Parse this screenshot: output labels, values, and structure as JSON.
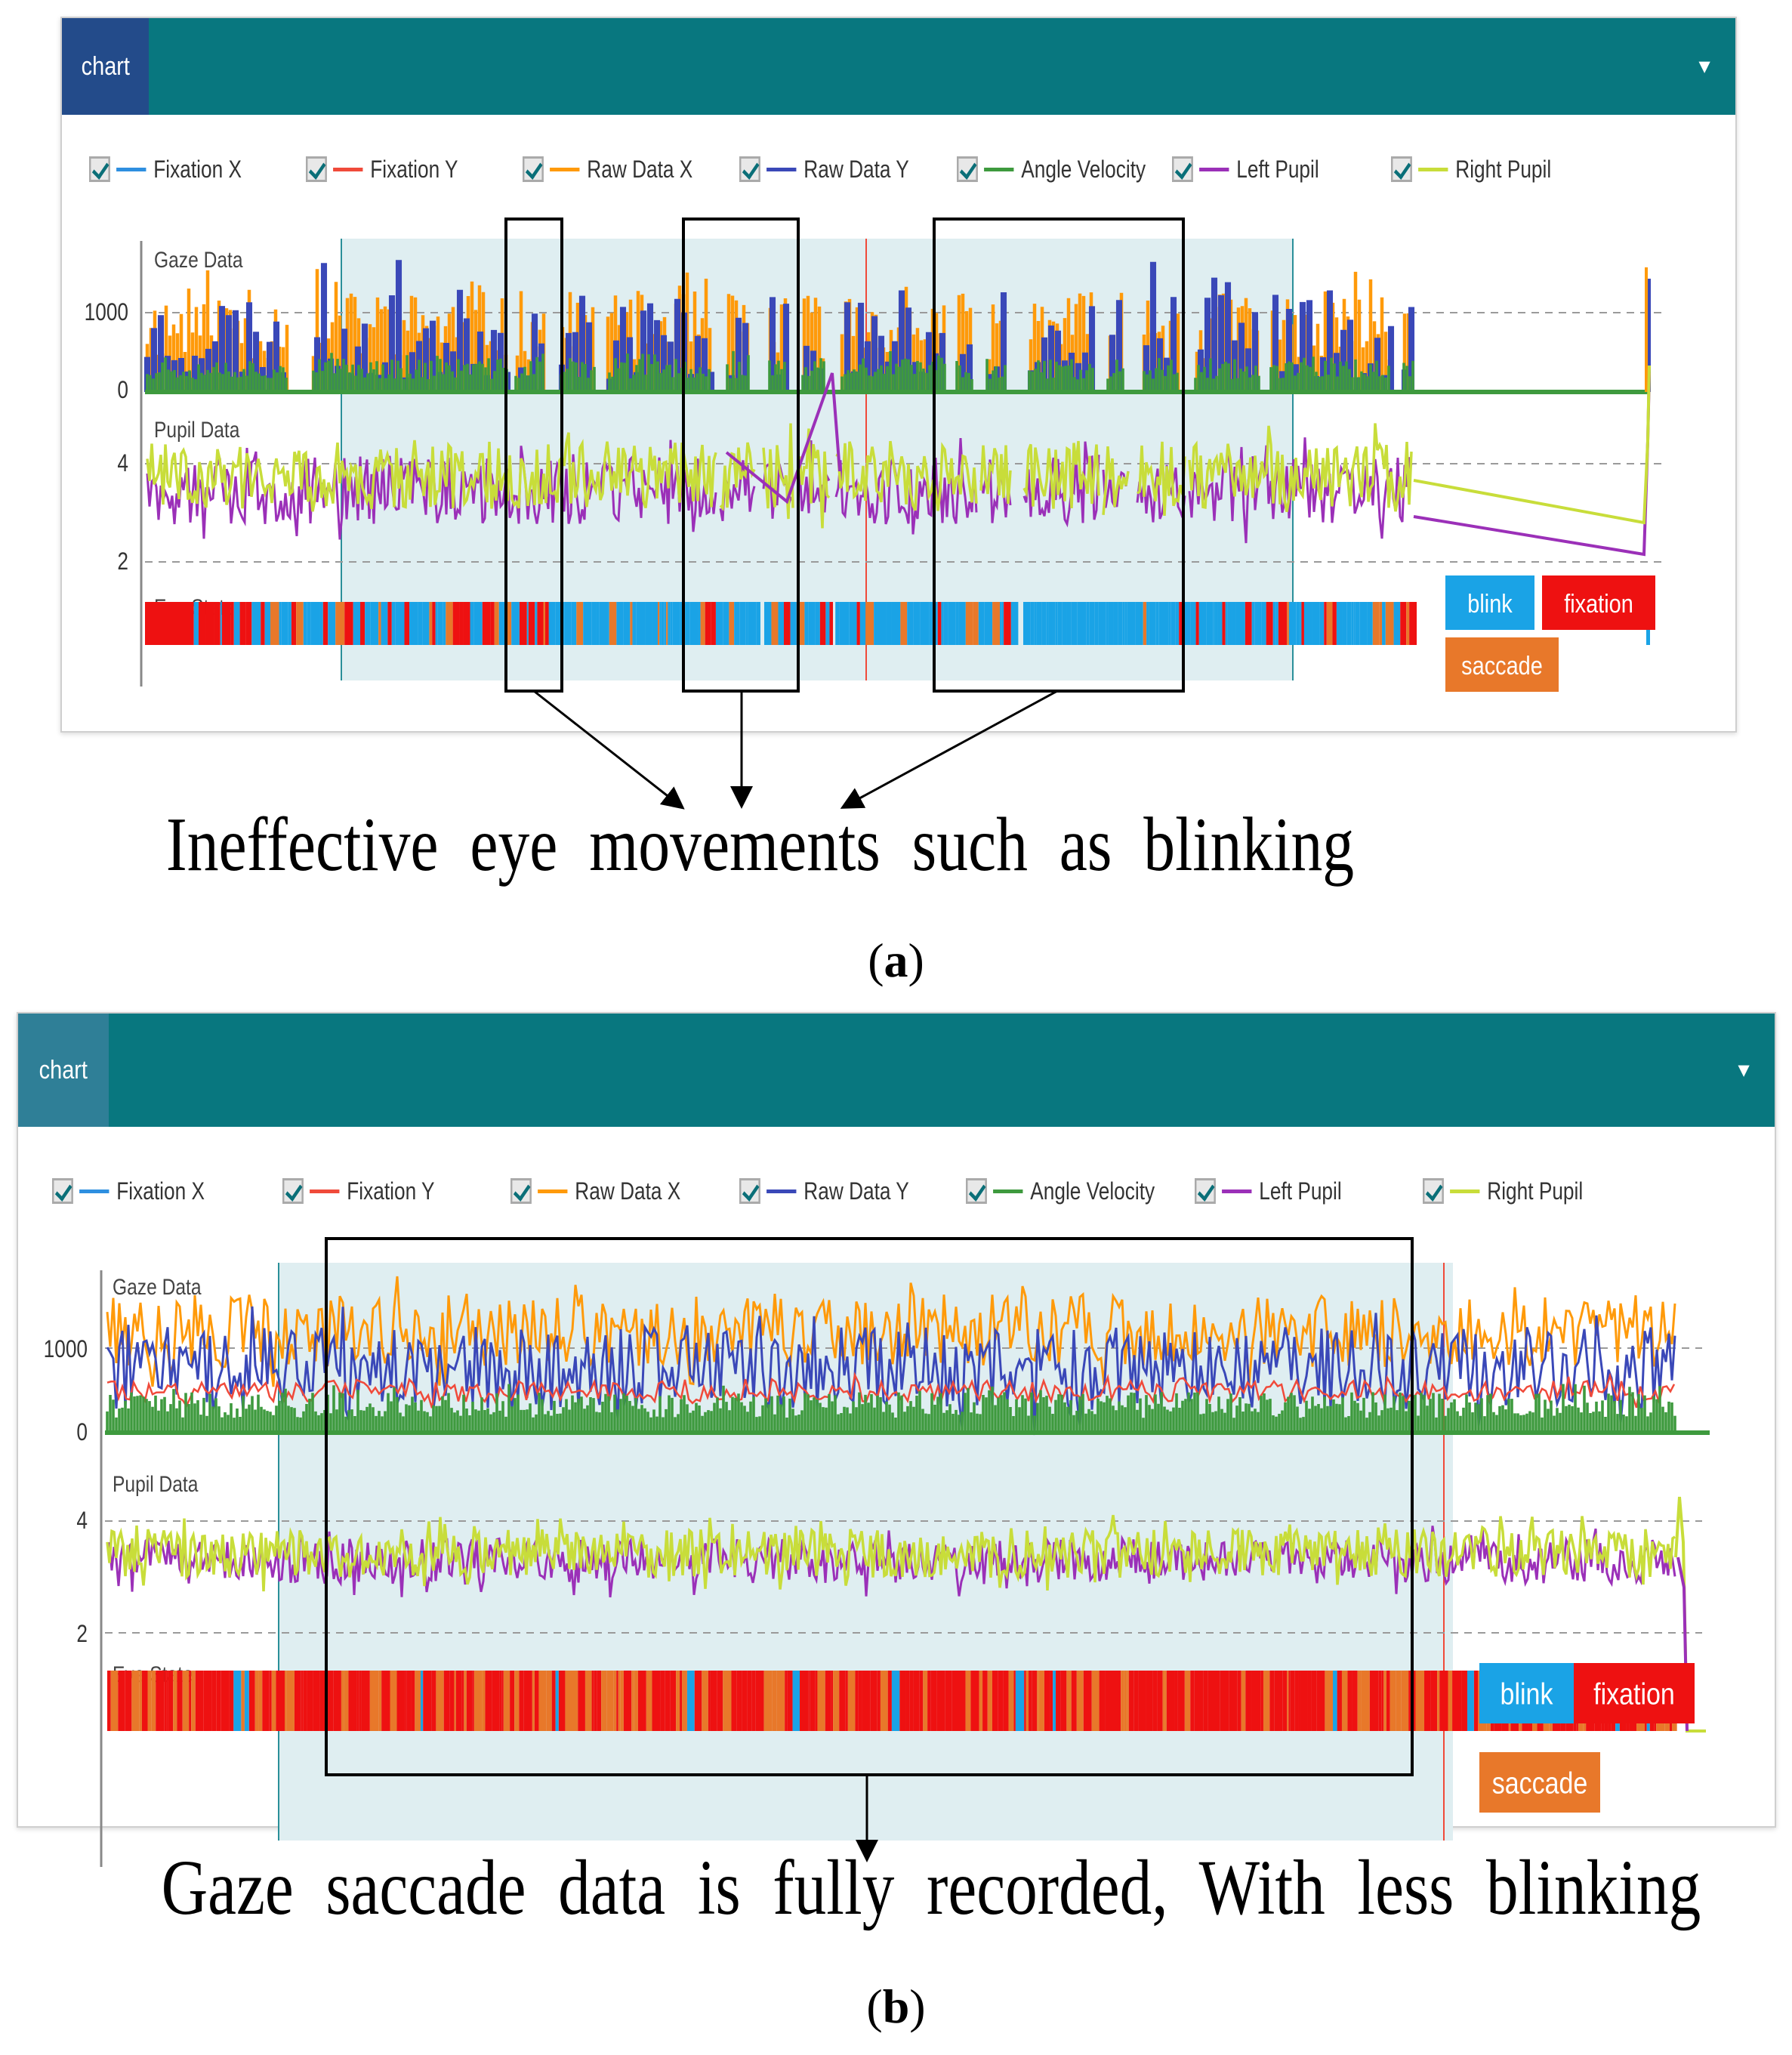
{
  "colors": {
    "fixation_x": "#2e8fe0",
    "fixation_y": "#f04a3a",
    "raw_x": "#ff9a0a",
    "raw_y": "#3a48b8",
    "angle_velocity": "#3e9a3e",
    "left_pupil": "#9b30b8",
    "right_pupil": "#c8dd3a",
    "blink": "#1aa3e6",
    "fixation": "#ee1111",
    "saccade": "#e8782a",
    "header": "#08777f",
    "selection": "#dfeef1"
  },
  "panel_a": {
    "tab_label": "chart",
    "legend": [
      "Fixation X",
      "Fixation Y",
      "Raw Data X",
      "Raw Data Y",
      "Angle Velocity",
      "Left Pupil",
      "Right Pupil"
    ],
    "gaze_label": "Gaze Data",
    "pupil_label": "Pupil Data",
    "state_label": "Eye State",
    "gaze_ticks": [
      "1000",
      "0"
    ],
    "pupil_ticks": [
      "4",
      "2"
    ],
    "state_legend": {
      "blink": "blink",
      "fixation": "fixation",
      "saccade": "saccade"
    },
    "caption": "Ineffective  eye  movements  such  as  blinking",
    "tag": "a"
  },
  "panel_b": {
    "tab_label": "chart",
    "legend": [
      "Fixation X",
      "Fixation Y",
      "Raw Data X",
      "Raw Data Y",
      "Angle Velocity",
      "Left Pupil",
      "Right Pupil"
    ],
    "gaze_label": "Gaze Data",
    "pupil_label": "Pupil Data",
    "state_label": "Eye State",
    "gaze_ticks": [
      "1000",
      "0"
    ],
    "pupil_ticks": [
      "4",
      "2"
    ],
    "state_legend": {
      "blink": "blink",
      "fixation": "fixation",
      "saccade": "saccade"
    },
    "caption": "Gaze  saccade  data  is  fully  recorded,  With  less  blinking",
    "tag": "b"
  },
  "chart_data": [
    {
      "type": "line",
      "panel": "a",
      "title": "",
      "series": [
        {
          "name": "Fixation X"
        },
        {
          "name": "Fixation Y"
        },
        {
          "name": "Raw Data X"
        },
        {
          "name": "Raw Data Y"
        },
        {
          "name": "Angle Velocity"
        },
        {
          "name": "Left Pupil"
        },
        {
          "name": "Right Pupil"
        }
      ],
      "gaze_ylim": [
        0,
        1500
      ],
      "pupil_ylim": [
        2,
        5
      ],
      "gaze_ticks": [
        0,
        1000
      ],
      "pupil_ticks": [
        2,
        4
      ],
      "pupil_typical_range": [
        2.5,
        4.5
      ],
      "right_pupil_end_value": 2.5,
      "left_pupil_end_value": 2.1,
      "eye_state_categories": [
        "blink",
        "fixation",
        "saccade"
      ],
      "eye_state_pattern": "frequent blink segments with gaps where no gaze data is recorded",
      "grid": "dashed horizontal",
      "annotation": "Ineffective eye movements such as blinking"
    },
    {
      "type": "line",
      "panel": "b",
      "title": "",
      "series": [
        {
          "name": "Fixation X"
        },
        {
          "name": "Fixation Y"
        },
        {
          "name": "Raw Data X"
        },
        {
          "name": "Raw Data Y"
        },
        {
          "name": "Angle Velocity"
        },
        {
          "name": "Left Pupil"
        },
        {
          "name": "Right Pupil"
        }
      ],
      "gaze_ylim": [
        0,
        1500
      ],
      "pupil_ylim": [
        2,
        5
      ],
      "gaze_ticks": [
        0,
        1000
      ],
      "pupil_ticks": [
        2,
        4
      ],
      "raw_x_typical_range": [
        900,
        1300
      ],
      "raw_y_typical_range": [
        400,
        1100
      ],
      "fixation_y_typical": 400,
      "pupil_typical_range": [
        2.8,
        3.8
      ],
      "eye_state_categories": [
        "blink",
        "fixation",
        "saccade"
      ],
      "eye_state_pattern": "mostly fixation and saccade, continuous recording with less blinking",
      "grid": "dashed horizontal",
      "annotation": "Gaze saccade data is fully recorded, With less blinking"
    }
  ]
}
